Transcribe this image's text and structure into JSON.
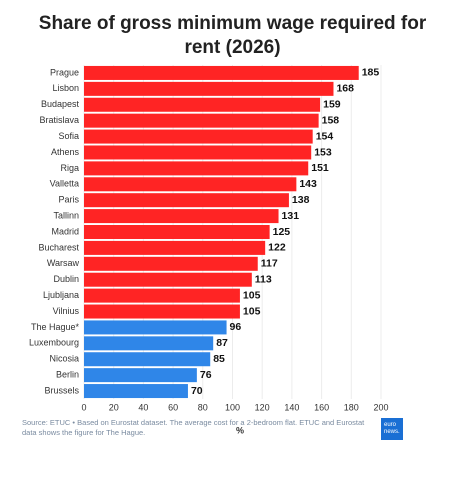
{
  "chart_data": {
    "type": "hbar",
    "title": "Share of gross minimum wage required for rent (2026)",
    "categories": [
      "Prague",
      "Lisbon",
      "Budapest",
      "Bratislava",
      "Sofia",
      "Athens",
      "Riga",
      "Valletta",
      "Paris",
      "Tallinn",
      "Madrid",
      "Bucharest",
      "Warsaw",
      "Dublin",
      "Ljubljana",
      "Vilnius",
      "The Hague*",
      "Luxembourg",
      "Nicosia",
      "Berlin",
      "Brussels"
    ],
    "values": [
      185,
      168,
      159,
      158,
      154,
      153,
      151,
      143,
      138,
      131,
      125,
      122,
      117,
      113,
      105,
      105,
      96,
      87,
      85,
      76,
      70
    ],
    "colors": [
      "#ff2424",
      "#ff2424",
      "#ff2424",
      "#ff2424",
      "#ff2424",
      "#ff2424",
      "#ff2424",
      "#ff2424",
      "#ff2424",
      "#ff2424",
      "#ff2424",
      "#ff2424",
      "#ff2424",
      "#ff2424",
      "#ff2424",
      "#ff2424",
      "#2f86e8",
      "#2f86e8",
      "#2f86e8",
      "#2f86e8",
      "#2f86e8"
    ],
    "xlim": [
      0,
      200
    ],
    "xticks": [
      0,
      20,
      40,
      60,
      80,
      100,
      120,
      140,
      160,
      180,
      200
    ],
    "xlabel": "%",
    "grid": true,
    "source": "Source: ETUC • Based on Eurostat dataset. The average cost for a 2-bedroom flat. ETUC and Eurostat data shows the figure for The Hague.",
    "logo": "euro news."
  }
}
